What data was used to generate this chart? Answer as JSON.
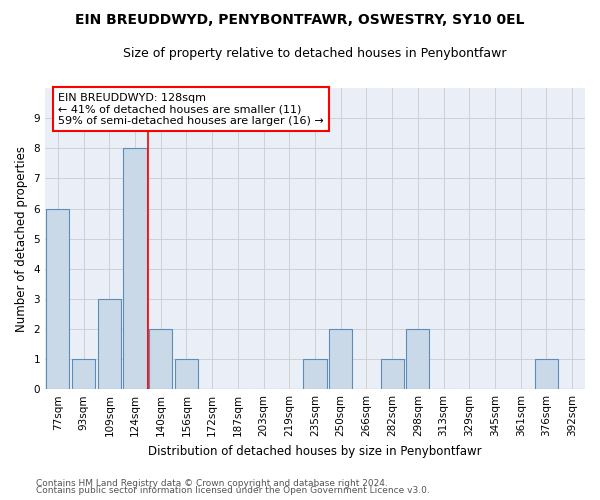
{
  "title": "EIN BREUDDWYD, PENYBONTFAWR, OSWESTRY, SY10 0EL",
  "subtitle": "Size of property relative to detached houses in Penybontfawr",
  "xlabel": "Distribution of detached houses by size in Penybontfawr",
  "ylabel": "Number of detached properties",
  "categories": [
    "77sqm",
    "93sqm",
    "109sqm",
    "124sqm",
    "140sqm",
    "156sqm",
    "172sqm",
    "187sqm",
    "203sqm",
    "219sqm",
    "235sqm",
    "250sqm",
    "266sqm",
    "282sqm",
    "298sqm",
    "313sqm",
    "329sqm",
    "345sqm",
    "361sqm",
    "376sqm",
    "392sqm"
  ],
  "values": [
    6,
    1,
    3,
    8,
    2,
    1,
    0,
    0,
    0,
    0,
    1,
    2,
    0,
    1,
    2,
    0,
    0,
    0,
    0,
    1,
    0
  ],
  "bar_color": "#c9d9e8",
  "bar_edgecolor": "#5b8db8",
  "redline_index": 3.5,
  "annotation_text": "EIN BREUDDWYD: 128sqm\n← 41% of detached houses are smaller (11)\n59% of semi-detached houses are larger (16) →",
  "annotation_box_color": "white",
  "annotation_box_edgecolor": "red",
  "redline_color": "red",
  "ylim": [
    0,
    10
  ],
  "yticks": [
    0,
    1,
    2,
    3,
    4,
    5,
    6,
    7,
    8,
    9,
    10
  ],
  "grid_color": "#cccccc",
  "bg_color": "#eaeff7",
  "footer_line1": "Contains HM Land Registry data © Crown copyright and database right 2024.",
  "footer_line2": "Contains public sector information licensed under the Open Government Licence v3.0.",
  "title_fontsize": 10,
  "subtitle_fontsize": 9,
  "xlabel_fontsize": 8.5,
  "ylabel_fontsize": 8.5,
  "tick_fontsize": 7.5,
  "annotation_fontsize": 8,
  "footer_fontsize": 6.5
}
